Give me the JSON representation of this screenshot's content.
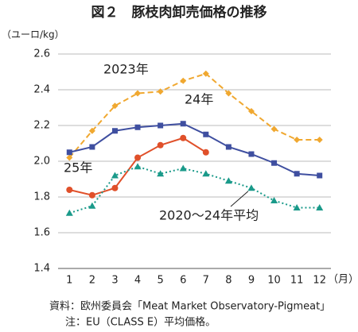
{
  "chart_data": {
    "type": "line",
    "title": "図２　豚枝肉卸売価格の推移",
    "y_label": "（ユーロ/kg）",
    "x_label": "（月）",
    "categories": [
      "1",
      "2",
      "3",
      "4",
      "5",
      "6",
      "7",
      "8",
      "9",
      "10",
      "11",
      "12"
    ],
    "ylim": [
      1.4,
      2.6
    ],
    "yticks": [
      1.4,
      1.6,
      1.8,
      {
        "value": 2,
        "label": "2.0"
      },
      2.2,
      2.4,
      2.6
    ],
    "grid": true,
    "series": [
      {
        "name": "2023年",
        "color": "#f0a830",
        "style": "dashed",
        "marker": "diamond",
        "values": [
          2.02,
          2.17,
          2.31,
          2.38,
          2.39,
          2.45,
          2.49,
          2.38,
          2.28,
          2.18,
          2.12,
          2.12
        ]
      },
      {
        "name": "24年",
        "color": "#3f4fa0",
        "style": "solid",
        "marker": "square",
        "values": [
          2.05,
          2.08,
          2.17,
          2.19,
          2.2,
          2.21,
          2.15,
          2.08,
          2.04,
          1.99,
          1.93,
          1.92
        ]
      },
      {
        "name": "25年",
        "color": "#e0502a",
        "style": "solid",
        "marker": "circle",
        "values": [
          1.84,
          1.81,
          1.85,
          2.02,
          2.09,
          2.13,
          2.05,
          null,
          null,
          null,
          null,
          null
        ]
      },
      {
        "name": "2020〜24年平均",
        "color": "#1a9a8a",
        "style": "dotted",
        "marker": "triangle",
        "values": [
          1.71,
          1.75,
          1.92,
          1.97,
          1.93,
          1.96,
          1.93,
          1.89,
          1.85,
          1.78,
          1.74,
          1.74
        ]
      }
    ],
    "notes": [
      "資料：欧州委員会「Meat Market Observatory-Pigmeat」",
      "注：EU（CLASS E）平均価格。"
    ]
  }
}
